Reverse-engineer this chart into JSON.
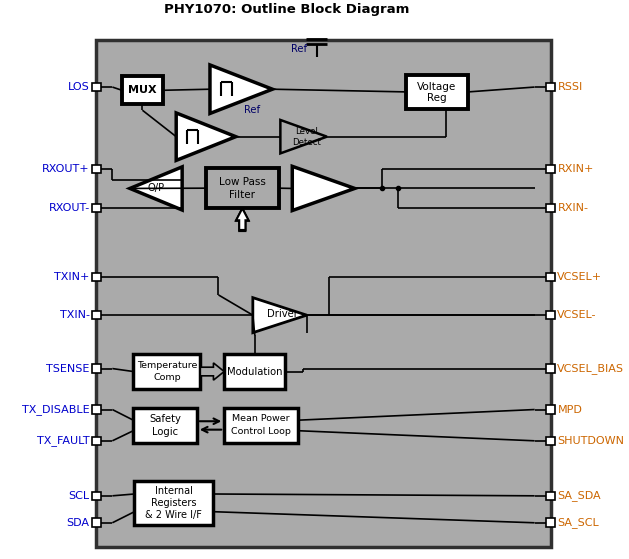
{
  "title": "PHY1070: Outline Block Diagram",
  "outer_bg": "#ffffff",
  "gray_bg": "#aaaaaa",
  "box_fc": "#ffffff",
  "box_ec": "#000000",
  "lc_left": "#0000cc",
  "lc_right": "#cc6600",
  "fig_w": 6.29,
  "fig_h": 5.59,
  "left_pins": [
    [
      "LOS",
      0.87
    ],
    [
      "RXOUT+",
      0.718
    ],
    [
      "RXOUT-",
      0.646
    ],
    [
      "TXIN+",
      0.518
    ],
    [
      "TXIN-",
      0.447
    ],
    [
      "TSENSE",
      0.348
    ],
    [
      "TX_DISABLE",
      0.272
    ],
    [
      "TX_FAULT",
      0.214
    ],
    [
      "SCL",
      0.112
    ],
    [
      "SDA",
      0.062
    ]
  ],
  "right_pins": [
    [
      "RSSI",
      0.87
    ],
    [
      "RXIN+",
      0.718
    ],
    [
      "RXIN-",
      0.646
    ],
    [
      "VCSEL+",
      0.518
    ],
    [
      "VCSEL-",
      0.447
    ],
    [
      "VCSEL_BIAS",
      0.348
    ],
    [
      "MPD",
      0.272
    ],
    [
      "SHUTDOWN",
      0.214
    ],
    [
      "SA_SDA",
      0.112
    ],
    [
      "SA_SCL",
      0.062
    ]
  ]
}
